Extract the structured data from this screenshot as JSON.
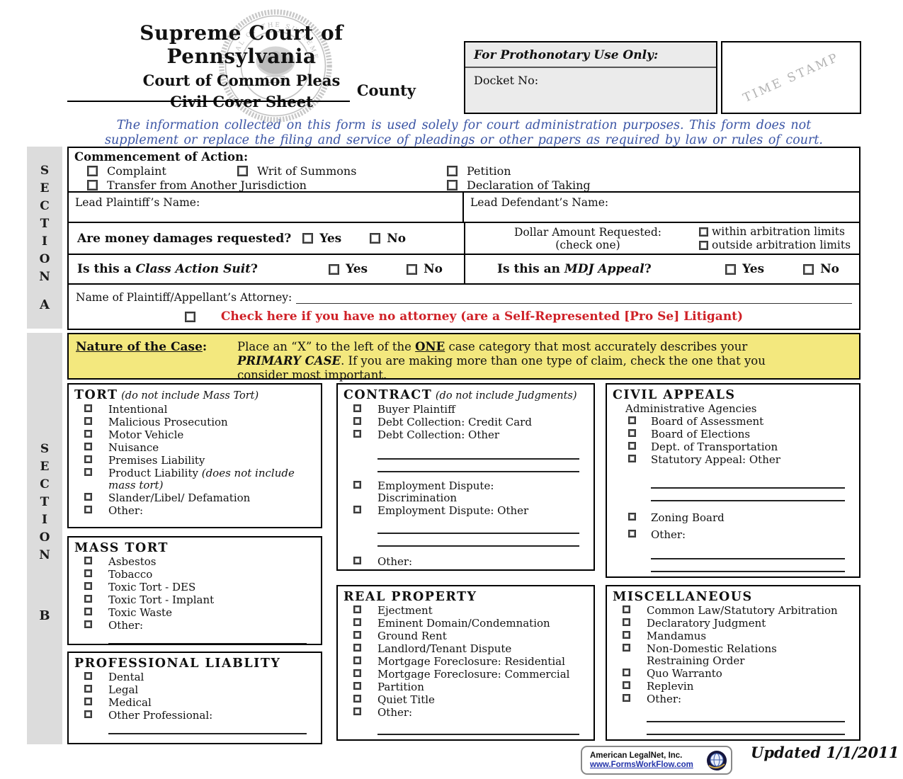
{
  "header": {
    "title": "Supreme Court of Pennsylvania",
    "subtitle1": "Court of Common Pleas",
    "subtitle2": "Civil Cover Sheet",
    "county_label": "County",
    "seal_year": "1722",
    "seal_text": "SEAL OF THE SUPREME COURT OF PENNSYLVANIA"
  },
  "prothonotary": {
    "title": "For Prothonotary Use Only:",
    "docket_label": "Docket No:",
    "time_stamp": "TIME STAMP"
  },
  "notice_line1": "The information collected on this form is used solely for court administration purposes.  This form does not",
  "notice_line2": "supplement or replace the filing and service of pleadings or other papers as required by law or rules of court.",
  "section_a": {
    "bar_letters": [
      "S",
      "E",
      "C",
      "T",
      "I",
      "O",
      "N"
    ],
    "bar_label": "A",
    "commencement_title": "Commencement of Action:",
    "row1": [
      "Complaint",
      "Writ of Summons",
      "Petition"
    ],
    "row2": [
      "Transfer from Another Jurisdiction",
      "Declaration of Taking"
    ],
    "lead_plaintiff": "Lead Plaintiff’s Name:",
    "lead_defendant": "Lead Defendant’s Name:",
    "money_question": "Are money damages requested?",
    "yes": "Yes",
    "no": "No",
    "dollar_line1": "Dollar Amount Requested:",
    "dollar_line2": "(check one)",
    "within": "within arbitration limits",
    "outside": "outside arbitration limits",
    "class_prefix": "Is this a ",
    "class_italic": "Class Action Suit",
    "class_suffix": "?",
    "mdj_prefix": "Is this an ",
    "mdj_italic": "MDJ Appeal",
    "mdj_suffix": "?",
    "attorney_label": "Name of Plaintiff/Appellant’s Attorney:",
    "pro_se": "Check here if you have no attorney (are a Self-Represented [Pro Se] Litigant)"
  },
  "section_b": {
    "bar_letters": [
      "S",
      "E",
      "C",
      "T",
      "I",
      "O",
      "N"
    ],
    "bar_label": "B",
    "nature_title": "Nature of the Case",
    "nature_colon": ":",
    "instr_p1": "Place an “X” to the left of the ",
    "instr_one": "ONE",
    "instr_p2": " case category that most accurately describes your ",
    "instr_primary": "PRIMARY CASE",
    "instr_p3": ".  If you are making more than one type of claim, check the one that you consider most important.",
    "columns": [
      [
        {
          "id": "tort",
          "title": "TORT",
          "note": "(do not include Mass Tort)",
          "items": [
            {
              "t": "c",
              "l": "Intentional"
            },
            {
              "t": "c",
              "l": "Malicious Prosecution"
            },
            {
              "t": "c",
              "l": "Motor Vehicle"
            },
            {
              "t": "c",
              "l": "Nuisance"
            },
            {
              "t": "c",
              "l": "Premises Liability"
            },
            {
              "t": "c",
              "l": "Product Liability ",
              "n": "(does not include mass tort)"
            },
            {
              "t": "c",
              "l": "Slander/Libel/ Defamation"
            },
            {
              "t": "c",
              "l": "Other:"
            },
            {
              "t": "lines"
            }
          ]
        },
        {
          "id": "mass-tort",
          "title": "MASS TORT",
          "items": [
            {
              "t": "c",
              "l": "Asbestos"
            },
            {
              "t": "c",
              "l": "Tobacco"
            },
            {
              "t": "c",
              "l": "Toxic Tort - DES"
            },
            {
              "t": "c",
              "l": "Toxic Tort - Implant"
            },
            {
              "t": "c",
              "l": "Toxic Waste"
            },
            {
              "t": "c",
              "l": "Other:"
            },
            {
              "t": "lines"
            }
          ]
        },
        {
          "id": "professional-liability",
          "title": "PROFESSIONAL LIABLITY",
          "items": [
            {
              "t": "c",
              "l": "Dental"
            },
            {
              "t": "c",
              "l": "Legal"
            },
            {
              "t": "c",
              "l": "Medical"
            },
            {
              "t": "c",
              "l": "Other Professional:"
            },
            {
              "t": "lines"
            }
          ]
        }
      ],
      [
        {
          "id": "contract",
          "title": "CONTRACT",
          "note": "(do not include Judgments)",
          "items": [
            {
              "t": "c",
              "l": "Buyer Plaintiff"
            },
            {
              "t": "c",
              "l": "Debt Collection: Credit Card"
            },
            {
              "t": "c",
              "l": "Debt Collection: Other"
            },
            {
              "t": "gap",
              "h": 8
            },
            {
              "t": "lines"
            },
            {
              "t": "gap",
              "h": 10
            },
            {
              "t": "c",
              "l": "Employment Dispute:",
              "l2": "Discrimination"
            },
            {
              "t": "c",
              "l": "Employment Dispute: Other"
            },
            {
              "t": "gap",
              "h": 6
            },
            {
              "t": "lines"
            },
            {
              "t": "gap",
              "h": 12
            },
            {
              "t": "c",
              "l": "Other:"
            },
            {
              "t": "gap",
              "h": 4
            },
            {
              "t": "lines"
            }
          ]
        },
        {
          "id": "real-property",
          "title": "REAL PROPERTY",
          "items": [
            {
              "t": "c",
              "l": "Ejectment"
            },
            {
              "t": "c",
              "l": "Eminent Domain/Condemnation"
            },
            {
              "t": "c",
              "l": "Ground Rent"
            },
            {
              "t": "c",
              "l": "Landlord/Tenant Dispute"
            },
            {
              "t": "c",
              "l": "Mortgage Foreclosure: Residential"
            },
            {
              "t": "c",
              "l": "Mortgage Foreclosure: Commercial"
            },
            {
              "t": "c",
              "l": "Partition"
            },
            {
              "t": "c",
              "l": "Quiet Title"
            },
            {
              "t": "c",
              "l": "Other:"
            },
            {
              "t": "gap",
              "h": 5
            },
            {
              "t": "lines"
            }
          ]
        }
      ],
      [
        {
          "id": "civil-appeals",
          "title": "CIVIL APPEALS",
          "items": [
            {
              "t": "s",
              "l": "Administrative Agencies"
            },
            {
              "t": "c",
              "l": "Board of Assessment"
            },
            {
              "t": "c",
              "l": "Board of Elections"
            },
            {
              "t": "c",
              "l": "Dept. of Transportation"
            },
            {
              "t": "c",
              "l": "Statutory Appeal: Other"
            },
            {
              "t": "gap",
              "h": 14
            },
            {
              "t": "lines"
            },
            {
              "t": "gap",
              "h": 14
            },
            {
              "t": "c",
              "l": "Zoning Board"
            },
            {
              "t": "gap",
              "h": 6
            },
            {
              "t": "c",
              "l": "Other:"
            },
            {
              "t": "gap",
              "h": 8
            },
            {
              "t": "lines"
            }
          ]
        },
        {
          "id": "miscellaneous",
          "title": "MISCELLANEOUS",
          "items": [
            {
              "t": "c",
              "l": "Common Law/Statutory Arbitration"
            },
            {
              "t": "c",
              "l": "Declaratory Judgment"
            },
            {
              "t": "c",
              "l": "Mandamus"
            },
            {
              "t": "c",
              "l": "Non-Domestic Relations",
              "l2": "Restraining Order"
            },
            {
              "t": "c",
              "l": "Quo Warranto"
            },
            {
              "t": "c",
              "l": "Replevin"
            },
            {
              "t": "c",
              "l": "Other:"
            },
            {
              "t": "gap",
              "h": 6
            },
            {
              "t": "lines"
            }
          ]
        }
      ]
    ]
  },
  "footer": {
    "legalnet_line1": "American LegalNet, Inc.",
    "legalnet_line2": "www.FormsWorkFlow.com",
    "updated": "Updated 1/1/2011"
  }
}
